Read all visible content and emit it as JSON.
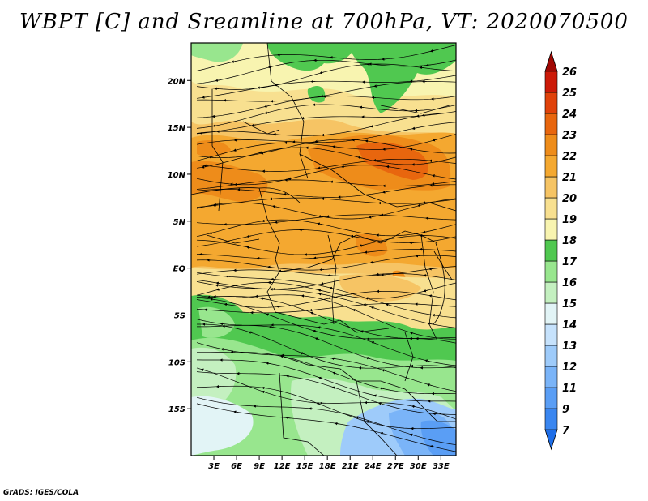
{
  "title": "WBPT [C] and Sreamline at 700hPa, VT: 2020070500",
  "credit": "GrADS: IGES/COLA",
  "map": {
    "lon_range": [
      0,
      35
    ],
    "lat_range": [
      -20,
      24
    ],
    "lat_labels": [
      {
        "value": 20,
        "text": "20N"
      },
      {
        "value": 15,
        "text": "15N"
      },
      {
        "value": 10,
        "text": "10N"
      },
      {
        "value": 5,
        "text": "5N"
      },
      {
        "value": 0,
        "text": "EQ"
      },
      {
        "value": -5,
        "text": "5S"
      },
      {
        "value": -10,
        "text": "10S"
      },
      {
        "value": -15,
        "text": "15S"
      }
    ],
    "lon_labels": [
      {
        "value": 3,
        "text": "3E"
      },
      {
        "value": 6,
        "text": "6E"
      },
      {
        "value": 9,
        "text": "9E"
      },
      {
        "value": 12,
        "text": "12E"
      },
      {
        "value": 15,
        "text": "15E"
      },
      {
        "value": 18,
        "text": "18E"
      },
      {
        "value": 21,
        "text": "21E"
      },
      {
        "value": 24,
        "text": "24E"
      },
      {
        "value": 27,
        "text": "27E"
      },
      {
        "value": 30,
        "text": "30E"
      },
      {
        "value": 33,
        "text": "33E"
      }
    ]
  },
  "colorbar": {
    "levels": [
      "7",
      "9",
      "11",
      "12",
      "13",
      "14",
      "15",
      "16",
      "17",
      "18",
      "19",
      "20",
      "21",
      "22",
      "23",
      "24",
      "25",
      "26"
    ],
    "colors": [
      "#1e6ee8",
      "#3a86f0",
      "#5a9ef5",
      "#7ab4f8",
      "#9ecbfa",
      "#c6e2fc",
      "#e2f4f6",
      "#c4f0c0",
      "#98e68e",
      "#50c850",
      "#f8f4b0",
      "#f8e090",
      "#f6c464",
      "#f4a830",
      "#ee8c1a",
      "#e8660e",
      "#e0420a",
      "#cc1a08",
      "#a00804"
    ]
  }
}
